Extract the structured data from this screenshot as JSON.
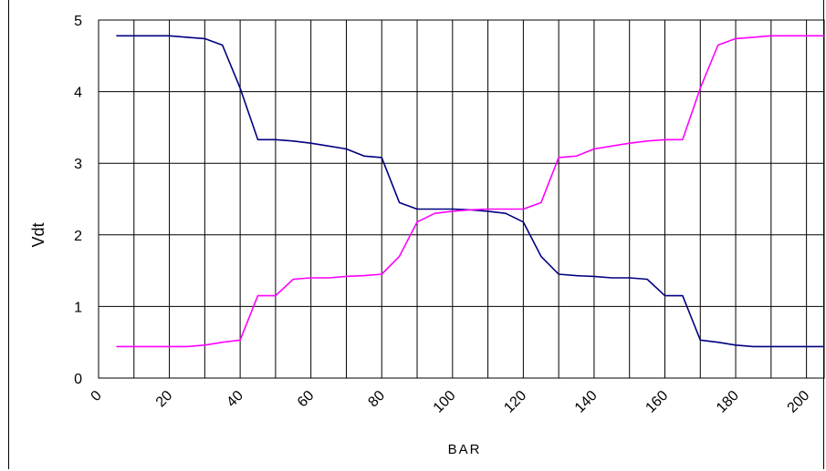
{
  "chart_data": {
    "type": "line",
    "xlabel": "BAR",
    "ylabel": "Vdt",
    "xlim": [
      0,
      205
    ],
    "ylim": [
      0,
      5
    ],
    "x_ticks": [
      0,
      20,
      40,
      60,
      80,
      100,
      120,
      140,
      160,
      180,
      200
    ],
    "y_ticks": [
      0,
      1,
      2,
      3,
      4,
      5
    ],
    "grid": true,
    "x_grid_step": 10,
    "colors": [
      "#000080",
      "#ff00ff"
    ],
    "series": [
      {
        "x": [
          5,
          10,
          15,
          20,
          25,
          30,
          35,
          40,
          45,
          50,
          55,
          60,
          65,
          70,
          75,
          80,
          85,
          90,
          95,
          100,
          105,
          110,
          115,
          120,
          125,
          130,
          135,
          140,
          145,
          150,
          155,
          160,
          165,
          170,
          175,
          180,
          185,
          190,
          195,
          200,
          205
        ],
        "values": [
          4.78,
          4.78,
          4.78,
          4.78,
          4.76,
          4.74,
          4.65,
          4.05,
          3.33,
          3.33,
          3.31,
          3.28,
          3.24,
          3.2,
          3.1,
          3.08,
          2.45,
          2.36,
          2.36,
          2.36,
          2.35,
          2.33,
          2.3,
          2.18,
          1.7,
          1.45,
          1.43,
          1.42,
          1.4,
          1.4,
          1.38,
          1.15,
          1.15,
          0.53,
          0.5,
          0.46,
          0.44,
          0.44,
          0.44,
          0.44,
          0.44
        ]
      },
      {
        "x": [
          5,
          10,
          15,
          20,
          25,
          30,
          35,
          40,
          45,
          50,
          55,
          60,
          65,
          70,
          75,
          80,
          85,
          90,
          95,
          100,
          105,
          110,
          115,
          120,
          125,
          130,
          135,
          140,
          145,
          150,
          155,
          160,
          165,
          170,
          175,
          180,
          185,
          190,
          195,
          200,
          205
        ],
        "values": [
          0.44,
          0.44,
          0.44,
          0.44,
          0.44,
          0.46,
          0.5,
          0.53,
          1.15,
          1.15,
          1.38,
          1.4,
          1.4,
          1.42,
          1.43,
          1.45,
          1.7,
          2.18,
          2.3,
          2.33,
          2.35,
          2.36,
          2.36,
          2.36,
          2.45,
          3.08,
          3.1,
          3.2,
          3.24,
          3.28,
          3.31,
          3.33,
          3.33,
          4.05,
          4.65,
          4.74,
          4.76,
          4.78,
          4.78,
          4.78,
          4.78
        ]
      }
    ]
  }
}
